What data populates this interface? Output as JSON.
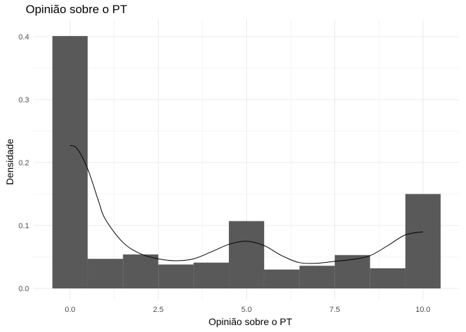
{
  "chart_data": {
    "type": "histogram",
    "title": "Opinião sobre o PT",
    "xlabel": "Opinião sobre o PT",
    "ylabel": "Densidade",
    "xlim": [
      -0.5,
      10.5
    ],
    "ylim": [
      0,
      0.4
    ],
    "x_ticks": [
      0,
      2.5,
      5,
      7.5,
      10
    ],
    "x_tick_labels": [
      "0.0",
      "2.5",
      "5.0",
      "7.5",
      "10.0"
    ],
    "y_ticks": [
      0,
      0.1,
      0.2,
      0.3,
      0.4
    ],
    "y_tick_labels": [
      "0.0",
      "0.1",
      "0.2",
      "0.3",
      "0.4"
    ],
    "grid": true,
    "bins": [
      {
        "x0": -0.5,
        "x1": 0.5,
        "density": 0.401
      },
      {
        "x0": 0.5,
        "x1": 1.5,
        "density": 0.047
      },
      {
        "x0": 1.5,
        "x1": 2.5,
        "density": 0.054
      },
      {
        "x0": 2.5,
        "x1": 3.5,
        "density": 0.038
      },
      {
        "x0": 3.5,
        "x1": 4.5,
        "density": 0.041
      },
      {
        "x0": 4.5,
        "x1": 5.5,
        "density": 0.107
      },
      {
        "x0": 5.5,
        "x1": 6.5,
        "density": 0.03
      },
      {
        "x0": 6.5,
        "x1": 7.5,
        "density": 0.036
      },
      {
        "x0": 7.5,
        "x1": 8.5,
        "density": 0.053
      },
      {
        "x0": 8.5,
        "x1": 9.5,
        "density": 0.032
      },
      {
        "x0": 9.5,
        "x1": 10.5,
        "density": 0.15
      }
    ],
    "density_curve": {
      "x": [
        0,
        0.2,
        0.5,
        0.8,
        1.0,
        1.5,
        2.0,
        2.5,
        3.0,
        3.5,
        4.0,
        4.5,
        5.0,
        5.5,
        6.0,
        6.5,
        7.0,
        7.5,
        8.0,
        8.5,
        9.0,
        9.5,
        10.0
      ],
      "y": [
        0.227,
        0.222,
        0.19,
        0.14,
        0.11,
        0.073,
        0.055,
        0.047,
        0.044,
        0.047,
        0.058,
        0.07,
        0.075,
        0.068,
        0.052,
        0.041,
        0.04,
        0.043,
        0.046,
        0.052,
        0.068,
        0.085,
        0.09
      ]
    },
    "colors": {
      "bar": "#595959",
      "curve": "#000000",
      "grid": "#ebebeb"
    }
  }
}
